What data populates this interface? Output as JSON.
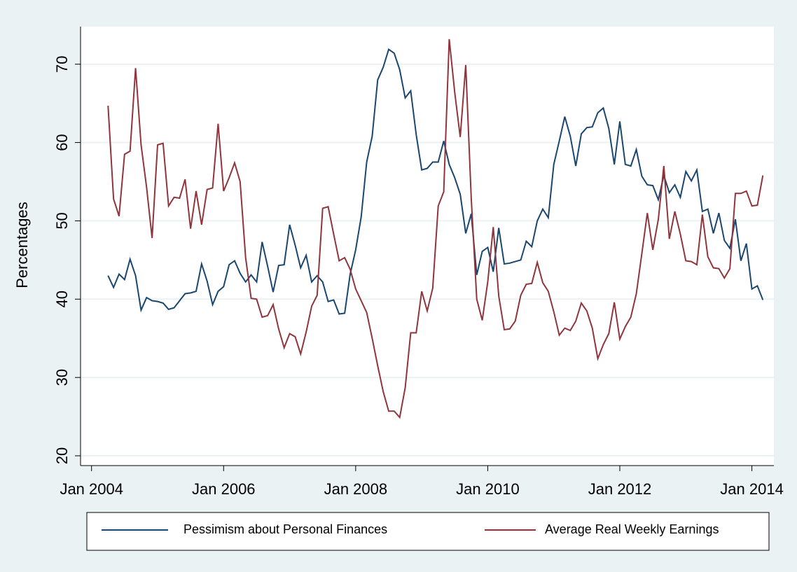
{
  "chart_data": {
    "type": "line",
    "ylabel": "Percentages",
    "x": [
      "2004-04",
      "2004-05",
      "2004-06",
      "2004-07",
      "2004-08",
      "2004-09",
      "2004-10",
      "2004-11",
      "2004-12",
      "2005-01",
      "2005-02",
      "2005-03",
      "2005-04",
      "2005-05",
      "2005-06",
      "2005-07",
      "2005-08",
      "2005-09",
      "2005-10",
      "2005-11",
      "2005-12",
      "2006-01",
      "2006-02",
      "2006-03",
      "2006-04",
      "2006-05",
      "2006-06",
      "2006-07",
      "2006-08",
      "2006-09",
      "2006-10",
      "2006-11",
      "2006-12",
      "2007-01",
      "2007-02",
      "2007-03",
      "2007-04",
      "2007-05",
      "2007-06",
      "2007-07",
      "2007-08",
      "2007-09",
      "2007-10",
      "2007-11",
      "2007-12",
      "2008-01",
      "2008-02",
      "2008-03",
      "2008-04",
      "2008-05",
      "2008-06",
      "2008-07",
      "2008-08",
      "2008-09",
      "2008-10",
      "2008-11",
      "2008-12",
      "2009-01",
      "2009-02",
      "2009-03",
      "2009-04",
      "2009-05",
      "2009-06",
      "2009-07",
      "2009-08",
      "2009-09",
      "2009-10",
      "2009-11",
      "2009-12",
      "2010-01",
      "2010-02",
      "2010-03",
      "2010-04",
      "2010-05",
      "2010-06",
      "2010-07",
      "2010-08",
      "2010-09",
      "2010-10",
      "2010-11",
      "2010-12",
      "2011-01",
      "2011-02",
      "2011-03",
      "2011-04",
      "2011-05",
      "2011-06",
      "2011-07",
      "2011-08",
      "2011-09",
      "2011-10",
      "2011-11",
      "2011-12",
      "2012-01",
      "2012-02",
      "2012-03",
      "2012-04",
      "2012-05",
      "2012-06",
      "2012-07",
      "2012-08",
      "2012-09",
      "2012-10",
      "2012-11",
      "2012-12",
      "2013-01",
      "2013-02",
      "2013-03",
      "2013-04",
      "2013-05",
      "2013-06",
      "2013-07",
      "2013-08",
      "2013-09",
      "2013-10",
      "2013-11",
      "2013-12",
      "2014-01",
      "2014-02",
      "2014-03"
    ],
    "series": [
      {
        "name": "Pessimism about Personal Finances",
        "color": "#1a476f",
        "values": [
          43,
          41.5,
          43.2,
          42.5,
          45.1,
          43,
          38.6,
          40.2,
          39.8,
          39.7,
          39.5,
          38.7,
          38.9,
          39.8,
          40.7,
          40.8,
          41,
          44.5,
          42.3,
          39.3,
          41,
          41.6,
          44.4,
          44.9,
          43.3,
          42.2,
          43.1,
          42.2,
          47.3,
          44.2,
          40.9,
          44.3,
          44.4,
          49.5,
          46.9,
          44,
          45.6,
          42.2,
          43,
          42.2,
          39.7,
          39.9,
          38.1,
          38.2,
          43.2,
          46.3,
          50.5,
          57.5,
          60.8,
          68,
          69.6,
          71.9,
          71.4,
          69.3,
          65.7,
          66.6,
          61,
          56.5,
          56.7,
          57.5,
          57.5,
          60.2,
          57.2,
          55.5,
          53.4,
          48.4,
          50.9,
          43.1,
          46.1,
          46.6,
          43.5,
          49.1,
          44.5,
          44.6,
          44.8,
          45,
          47.4,
          46.7,
          50,
          51.5,
          50.4,
          57.2,
          60.2,
          63.3,
          60.8,
          57,
          61.1,
          61.9,
          62,
          63.8,
          64.4,
          61.8,
          57.2,
          62.7,
          57.2,
          57,
          59.1,
          55.7,
          54.6,
          54.5,
          52.7,
          55.8,
          53.6,
          54.6,
          53,
          56.3,
          55.1,
          56.5,
          51.2,
          51.5,
          48.4,
          51,
          47.5,
          46.5,
          50.2,
          44.9,
          47.1,
          41.3,
          41.7,
          39.9
        ]
      },
      {
        "name": "Average Real Weekly Earnings",
        "color": "#90353b",
        "values": [
          64.7,
          52.8,
          50.6,
          58.5,
          58.9,
          69.5,
          59.7,
          54.3,
          47.8,
          59.7,
          59.9,
          51.9,
          53,
          52.9,
          55.3,
          49,
          53.8,
          49.5,
          54,
          54.2,
          62.4,
          53.8,
          55.5,
          57.4,
          55,
          45.3,
          40.1,
          40,
          37.7,
          37.9,
          39.3,
          36.2,
          33.8,
          35.6,
          35.2,
          33,
          35.8,
          39.1,
          40.5,
          51.6,
          51.8,
          48.3,
          44.9,
          45.3,
          43.8,
          41.3,
          39.8,
          38.3,
          35,
          31.5,
          28.2,
          25.7,
          25.7,
          24.9,
          28.7,
          35.7,
          35.7,
          41,
          38.5,
          41.4,
          51.9,
          53.7,
          73.2,
          66.4,
          60.7,
          69.9,
          52.9,
          40,
          37.3,
          42.2,
          49.2,
          40.4,
          36.1,
          36.2,
          37.2,
          40.5,
          41.9,
          42,
          44.7,
          42.1,
          41,
          38.4,
          35.4,
          36.3,
          36,
          37.2,
          39.5,
          38.5,
          36.3,
          32.4,
          34.2,
          35.6,
          39.6,
          34.9,
          36.5,
          37.7,
          40.7,
          45.8,
          51,
          46.3,
          50.2,
          57,
          47.7,
          51.2,
          48.3,
          44.9,
          44.8,
          44.4,
          50.8,
          45.4,
          44,
          43.9,
          42.7,
          43.9,
          53.5,
          53.5,
          53.8,
          51.9,
          52,
          55.8
        ]
      }
    ],
    "xlim": [
      "2003-11",
      "2014-05"
    ],
    "xticks": [
      {
        "value": "2004-01",
        "label": "Jan 2004"
      },
      {
        "value": "2006-01",
        "label": "Jan 2006"
      },
      {
        "value": "2008-01",
        "label": "Jan 2008"
      },
      {
        "value": "2010-01",
        "label": "Jan 2010"
      },
      {
        "value": "2012-01",
        "label": "Jan 2012"
      },
      {
        "value": "2014-01",
        "label": "Jan 2014"
      }
    ],
    "ylim": [
      18.75,
      74.8
    ],
    "yticks": [
      20,
      30,
      40,
      50,
      60,
      70
    ],
    "grid": true
  }
}
